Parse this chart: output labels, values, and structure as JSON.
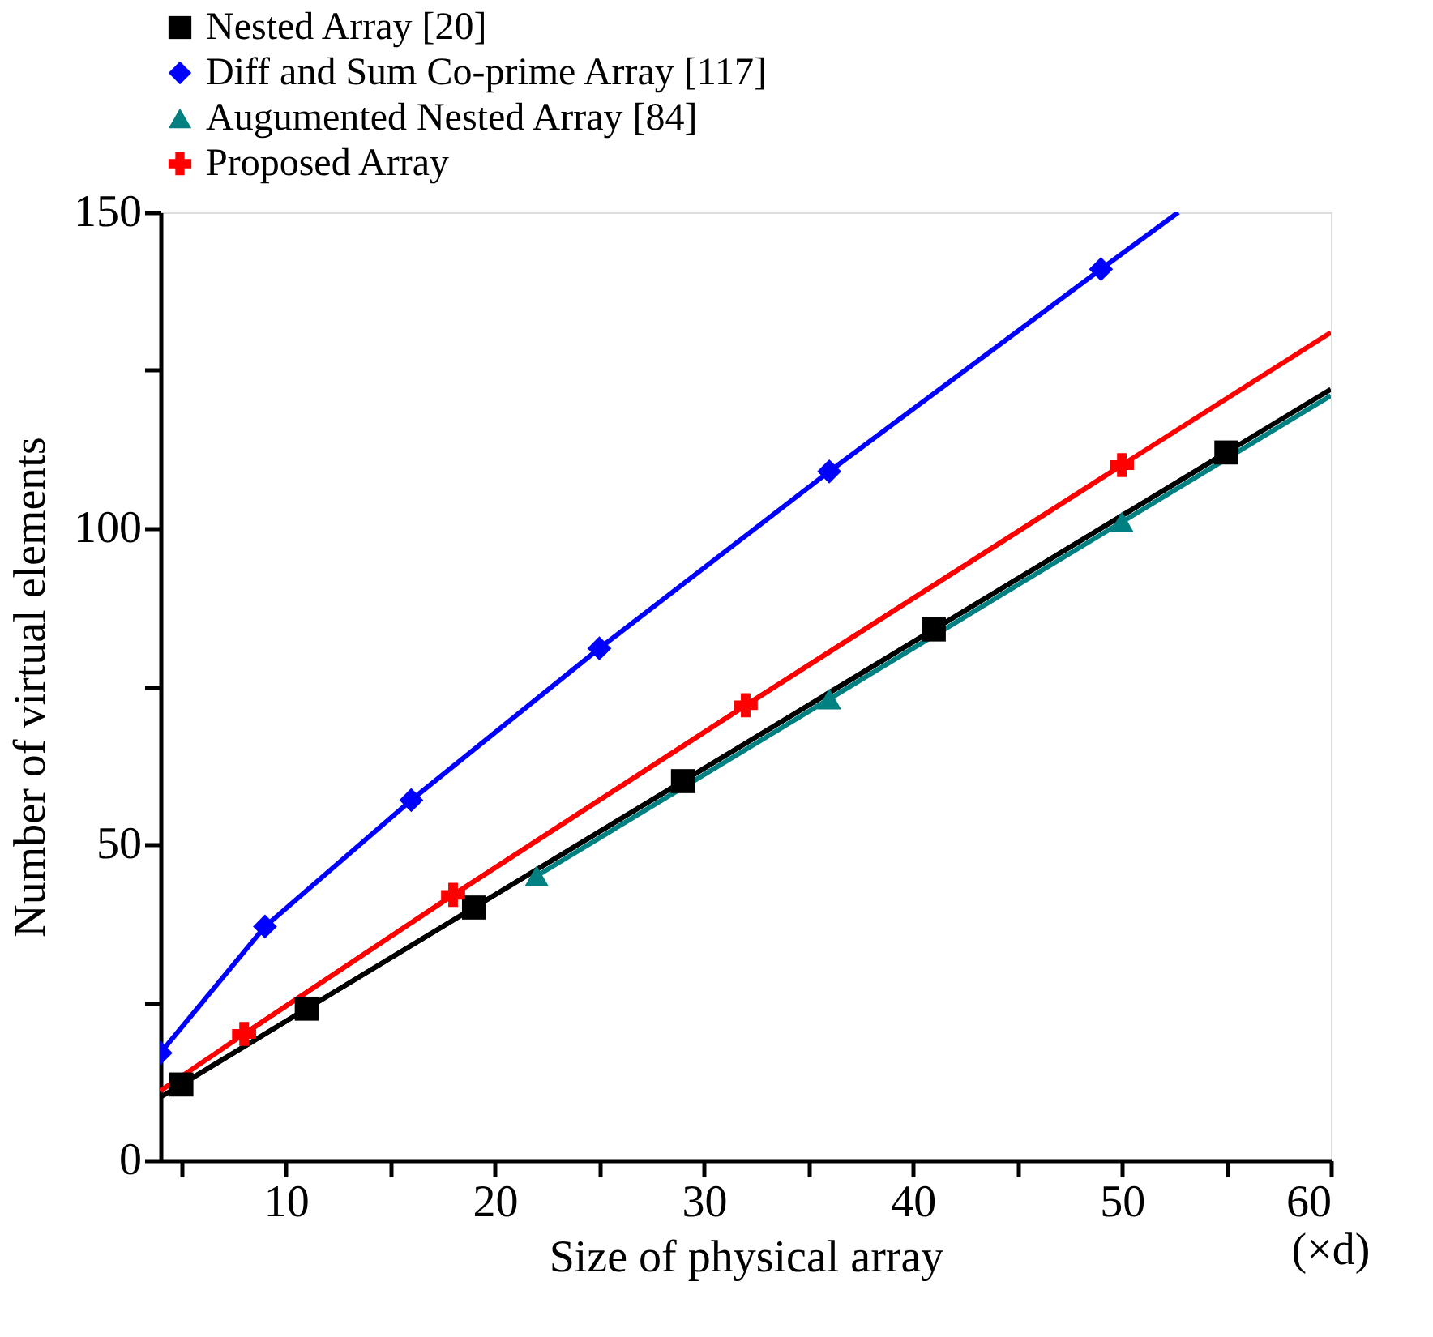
{
  "chart_data": {
    "type": "line",
    "xlabel": "Size of physical array",
    "ylabel": "Number of virtual elements",
    "annotations": [
      "(×d)"
    ],
    "xlim": [
      4,
      60
    ],
    "ylim": [
      0,
      150
    ],
    "xticks": [
      {
        "value": 5,
        "label": null
      },
      10,
      {
        "value": 15,
        "label": null
      },
      20,
      {
        "value": 25,
        "label": null
      },
      30,
      {
        "value": 35,
        "label": null
      },
      40,
      {
        "value": 45,
        "label": null
      },
      50,
      {
        "value": 55,
        "label": null
      },
      60
    ],
    "yticks": [
      0,
      {
        "value": 25,
        "label": null
      },
      50,
      {
        "value": 75,
        "label": null
      },
      100,
      {
        "value": 125,
        "label": null
      },
      150
    ],
    "grid": false,
    "legend": "top",
    "series": [
      {
        "name": "Nested Array [20]",
        "color": "#000000",
        "marker": "square",
        "x": [
          5,
          11,
          19,
          29,
          41,
          55
        ],
        "values": [
          12,
          24,
          40,
          60,
          84,
          112
        ]
      },
      {
        "name": "Diff and Sum Co-prime Array [117]",
        "color": "#0000ff",
        "marker": "diamond",
        "x": [
          4,
          9,
          16,
          25,
          36,
          49
        ],
        "values": [
          17,
          37,
          57,
          81,
          109,
          141
        ]
      },
      {
        "name": "Augumented Nested Array [84]",
        "color": "#008080",
        "marker": "triangle",
        "x": [
          22,
          36,
          50
        ],
        "values": [
          45,
          73,
          101
        ]
      },
      {
        "name": "Proposed Array",
        "color": "#ff0000",
        "marker": "cross",
        "x": [
          8,
          18,
          32,
          50
        ],
        "values": [
          20,
          42,
          72,
          110
        ]
      },
      {
        "color": "#000000",
        "marker": "none",
        "x": [
          4,
          60
        ],
        "values": [
          10,
          122
        ]
      },
      {
        "color": "#0000ff",
        "marker": "none",
        "x": [
          49,
          52.7
        ],
        "values": [
          141,
          150
        ]
      },
      {
        "color": "#008080",
        "marker": "none",
        "x": [
          50,
          60
        ],
        "values": [
          101,
          121
        ]
      },
      {
        "color": "#ff0000",
        "marker": "none",
        "x": [
          4,
          8,
          18,
          32,
          50,
          60
        ],
        "values": [
          11,
          20,
          42,
          72,
          110,
          131
        ]
      }
    ]
  }
}
